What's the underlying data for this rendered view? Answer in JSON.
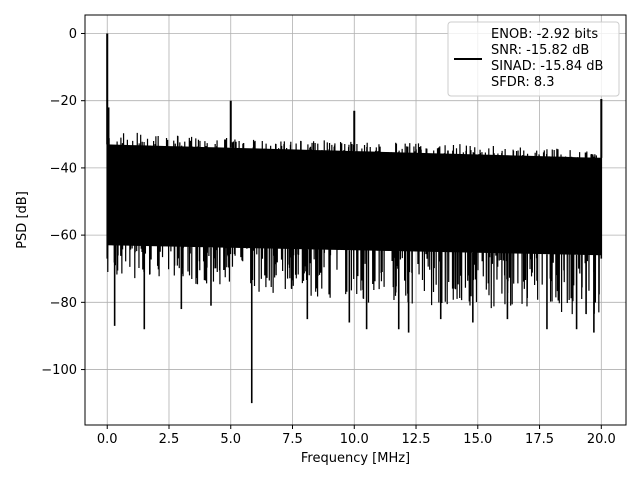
{
  "chart_data": {
    "type": "line",
    "title": "",
    "xlabel": "Frequency [MHz]",
    "ylabel": "PSD [dB]",
    "xlim": [
      -0.9,
      21.0
    ],
    "ylim": [
      -116.5,
      5.5
    ],
    "grid": true,
    "x_ticks": [
      0.0,
      2.5,
      5.0,
      7.5,
      10.0,
      12.5,
      15.0,
      17.5,
      20.0
    ],
    "x_tick_labels": [
      "0.0",
      "2.5",
      "5.0",
      "7.5",
      "10.0",
      "12.5",
      "15.0",
      "17.5",
      "20.0"
    ],
    "y_ticks": [
      0,
      -20,
      -40,
      -60,
      -80,
      -100
    ],
    "y_tick_labels": [
      "0",
      "−20",
      "−40",
      "−60",
      "−80",
      "−100"
    ],
    "legend": {
      "placement": "top-right",
      "entries": [
        "ENOB: -2.92 bits",
        "SNR: -15.82 dB",
        "SINAD: -15.84 dB",
        "SFDR: 8.3"
      ]
    },
    "series": [
      {
        "color": "#000000",
        "x_range": [
          0.0,
          20.0
        ],
        "noise_envelope": {
          "upper": [
            [
              0.0,
              -29
            ],
            [
              5.0,
              -31
            ],
            [
              10.0,
              -32
            ],
            [
              15.0,
              -33
            ],
            [
              20.0,
              -35
            ]
          ],
          "band_top": [
            [
              0.0,
              -33
            ],
            [
              20.0,
              -37
            ]
          ],
          "band_bottom": [
            [
              0.0,
              -63
            ],
            [
              20.0,
              -66
            ]
          ],
          "lower": [
            [
              0.0,
              -72
            ],
            [
              10.0,
              -80
            ],
            [
              20.0,
              -84
            ]
          ]
        },
        "dips": [
          [
            0.3,
            -87
          ],
          [
            1.5,
            -88
          ],
          [
            3.0,
            -82
          ],
          [
            4.2,
            -81
          ],
          [
            5.85,
            -110
          ],
          [
            8.1,
            -85
          ],
          [
            9.8,
            -86
          ],
          [
            10.5,
            -88
          ],
          [
            11.8,
            -88
          ],
          [
            12.2,
            -89
          ],
          [
            13.5,
            -85
          ],
          [
            14.8,
            -86
          ],
          [
            16.2,
            -85
          ],
          [
            17.8,
            -88
          ],
          [
            19.0,
            -88
          ],
          [
            19.7,
            -89
          ]
        ],
        "spurs": [
          [
            0.0,
            0
          ],
          [
            0.05,
            -22
          ],
          [
            5.0,
            -20
          ],
          [
            10.0,
            -23
          ],
          [
            20.0,
            -19.5
          ]
        ]
      }
    ]
  }
}
